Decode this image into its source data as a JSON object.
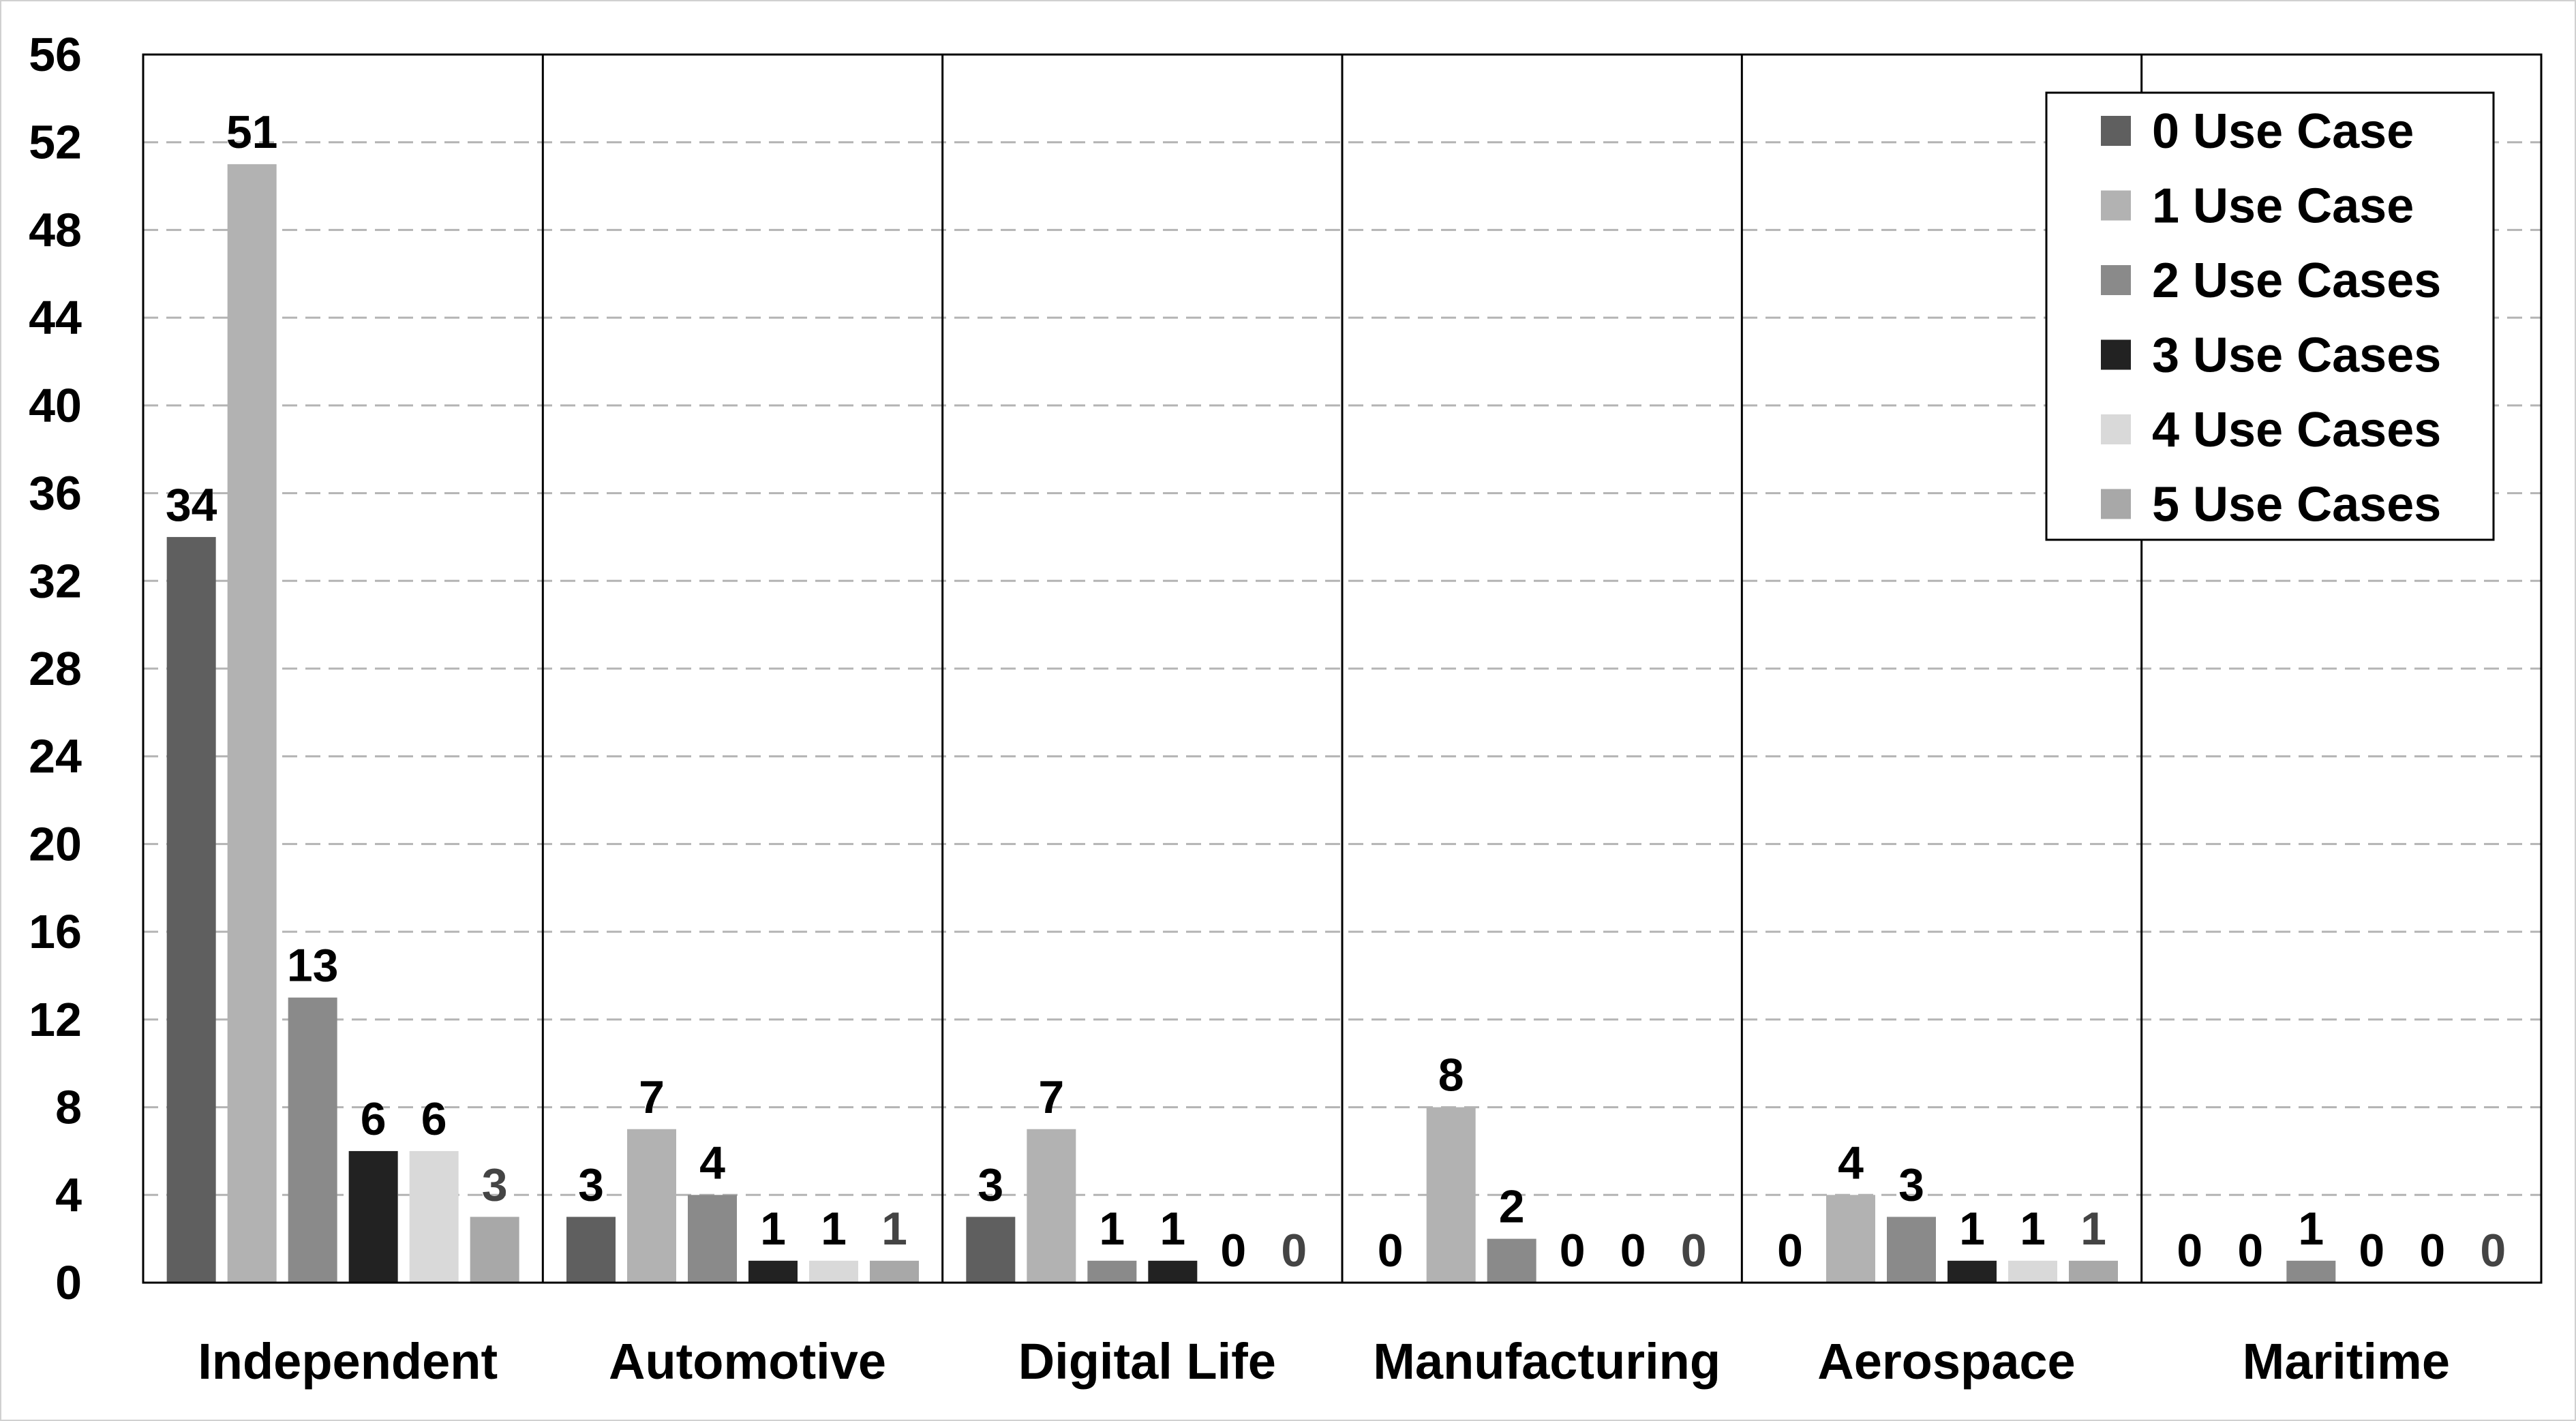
{
  "chart_data": {
    "type": "bar",
    "title": "",
    "xlabel": "",
    "ylabel": "",
    "categories": [
      "Independent",
      "Automotive",
      "Digital Life",
      "Manufacturing",
      "Aerospace",
      "Maritime"
    ],
    "series": [
      {
        "name": "0 Use Case",
        "color": "#5f5f5f",
        "values": [
          34,
          3,
          3,
          0,
          0,
          0
        ]
      },
      {
        "name": "1 Use Case",
        "color": "#b2b2b2",
        "values": [
          51,
          7,
          7,
          8,
          4,
          0
        ]
      },
      {
        "name": "2 Use Cases",
        "color": "#8a8a8a",
        "values": [
          13,
          4,
          1,
          2,
          3,
          1
        ]
      },
      {
        "name": "3 Use Cases",
        "color": "#222222",
        "values": [
          6,
          1,
          1,
          0,
          1,
          0
        ]
      },
      {
        "name": "4 Use Cases",
        "color": "#d9d9d9",
        "values": [
          6,
          1,
          0,
          0,
          1,
          0
        ]
      },
      {
        "name": "5 Use Cases",
        "color": "#a8a8a8",
        "values": [
          3,
          1,
          0,
          0,
          1,
          0
        ]
      }
    ],
    "y_ticks": [
      "0",
      "4",
      "8",
      "12",
      "16",
      "20",
      "24",
      "28",
      "32",
      "36",
      "40",
      "44",
      "48",
      "52",
      "56"
    ],
    "ylim": [
      0,
      56
    ],
    "grid": "horizontal dashed",
    "legend_position": "top-right",
    "label_colors": {
      "default": "#000000",
      "last_series": "#444444"
    }
  }
}
